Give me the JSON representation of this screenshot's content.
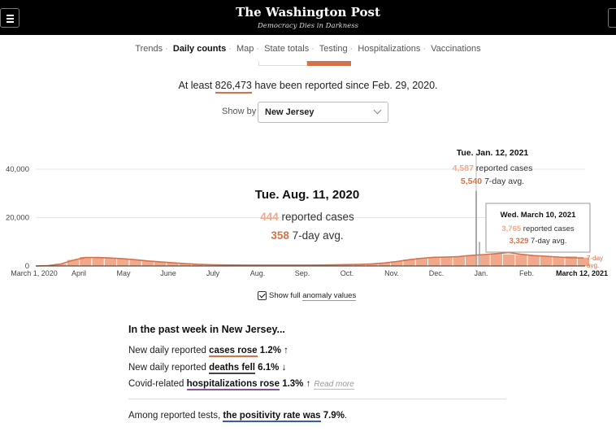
{
  "header": {
    "logo": "The Washington Post",
    "tagline": "Democracy Dies in Darkness"
  },
  "nav": {
    "items": [
      "Trends",
      "Daily counts",
      "Map",
      "State totals",
      "Testing",
      "Hospitalizations",
      "Vaccinations"
    ],
    "active": "Daily counts"
  },
  "summary": {
    "prefix": "At least ",
    "total": "826,473",
    "suffix": " have been reported since Feb. 29, 2020."
  },
  "show_by": {
    "label": "Show by",
    "selected": "New Jersey"
  },
  "chart_data": {
    "type": "bar",
    "x_tick_labels": [
      "March 1, 2020",
      "April",
      "May",
      "June",
      "July",
      "Aug.",
      "Sep.",
      "Oct.",
      "Nov.",
      "Dec.",
      "Jan.",
      "Feb.",
      "March 12, 2021"
    ],
    "y_tick_labels": [
      "40,000",
      "20,000",
      "0"
    ],
    "ylim": [
      0,
      40000
    ],
    "series": [
      {
        "values": [
          0,
          150,
          900,
          2500,
          3700,
          3600,
          3300,
          3000,
          2600,
          2100,
          1700,
          1300,
          1000,
          700,
          550,
          450,
          400,
          380,
          390,
          420,
          440,
          430,
          460,
          480,
          520,
          600,
          700,
          900,
          1300,
          1900,
          2700,
          3300,
          3700,
          3600,
          3800,
          4300,
          4600,
          5000,
          4800,
          4600,
          4200,
          4000,
          3800,
          4000,
          3500
        ]
      },
      {
        "values": [
          0,
          120,
          800,
          2400,
          3500,
          3500,
          3300,
          3000,
          2600,
          2100,
          1700,
          1300,
          1000,
          700,
          550,
          450,
          400,
          380,
          370,
          360,
          358,
          360,
          380,
          420,
          480,
          560,
          680,
          880,
          1250,
          1850,
          2600,
          3200,
          3600,
          3700,
          3900,
          4400,
          4700,
          5100,
          5540,
          4800,
          4300,
          4000,
          3700,
          3400,
          3329
        ]
      }
    ],
    "annotations": [
      {
        "title": "Tue. Aug. 11, 2020",
        "reported": "444",
        "reported_label": "reported cases",
        "avg": "358",
        "avg_label": "7-day avg."
      },
      {
        "title": "Tue. Jan. 12, 2021",
        "reported": "4,587",
        "reported_label": "reported cases",
        "avg": "5,540",
        "avg_label": "7-day avg."
      },
      {
        "title": "Wed. March 10, 2021",
        "reported": "3,765",
        "reported_label": "reported cases",
        "avg": "3,329",
        "avg_label": "7-day avg."
      }
    ],
    "end_label": [
      "7-day",
      "avg."
    ],
    "colors": {
      "bars": "#f2a98b",
      "line": "#d4734a",
      "spike": "#999999"
    }
  },
  "anomaly": {
    "label_prefix": "Show full ",
    "label_link": "anomaly values"
  },
  "past_week": {
    "title": "In the past week in New Jersey...",
    "rows": [
      {
        "prefix": "New daily reported ",
        "bold": "cases rose",
        "value": "1.2%",
        "arrow": "↑"
      },
      {
        "prefix": "New daily reported ",
        "bold": "deaths fell",
        "value": "6.1%",
        "arrow": "↓"
      },
      {
        "prefix": "Covid-related ",
        "bold": "hospitalizations rose",
        "value": "1.3%",
        "arrow": "↑",
        "more": "Read more"
      }
    ],
    "positivity": {
      "prefix": "Among reported tests, ",
      "bold": "the positivity rate was",
      "value": "7.9%",
      "suffix": "."
    }
  }
}
